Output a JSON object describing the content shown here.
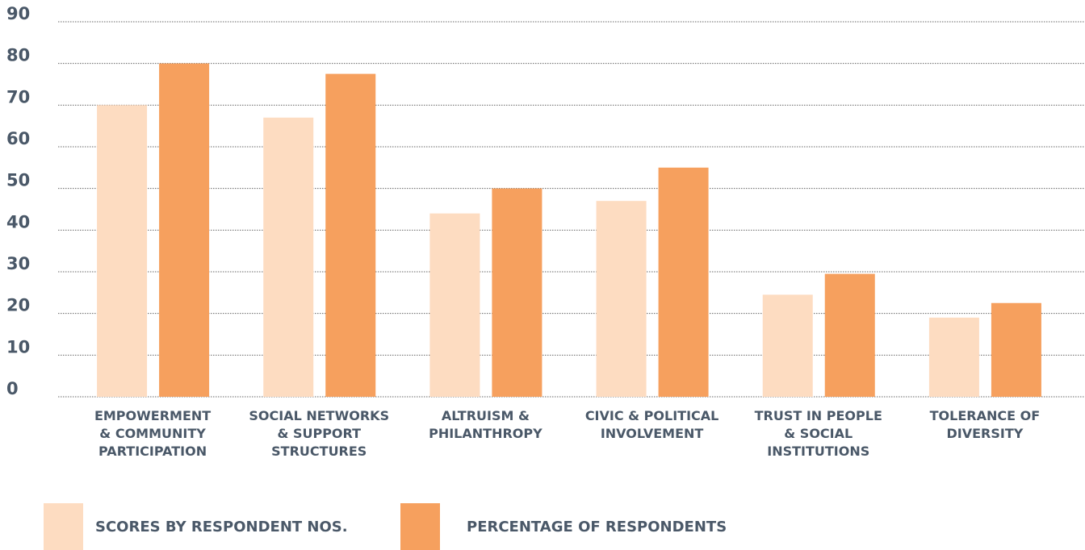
{
  "chart_data": {
    "type": "bar",
    "categories": [
      "EMPOWERMENT\n& COMMUNITY\nPARTICIPATION",
      "SOCIAL NETWORKS\n& SUPPORT\nSTRUCTURES",
      "ALTRUISM &\nPHILANTHROPY",
      "CIVIC & POLITICAL\nINVOLVEMENT",
      "TRUST IN PEOPLE\n& SOCIAL\nINSTITUTIONS",
      "TOLERANCE OF\nDIVERSITY"
    ],
    "series": [
      {
        "name": "SCORES BY RESPONDENT NOS.",
        "color": "#fddcc1",
        "values": [
          70,
          67,
          44,
          47,
          24.5,
          19
        ]
      },
      {
        "name": "PERCENTAGE OF RESPONDENTS",
        "color": "#f6a05e",
        "values": [
          80,
          77.5,
          50,
          55,
          29.5,
          22.5
        ]
      }
    ],
    "ylim": [
      0,
      90
    ],
    "yticks": [
      0,
      10,
      20,
      30,
      40,
      50,
      60,
      70,
      80,
      90
    ],
    "grid": true
  }
}
